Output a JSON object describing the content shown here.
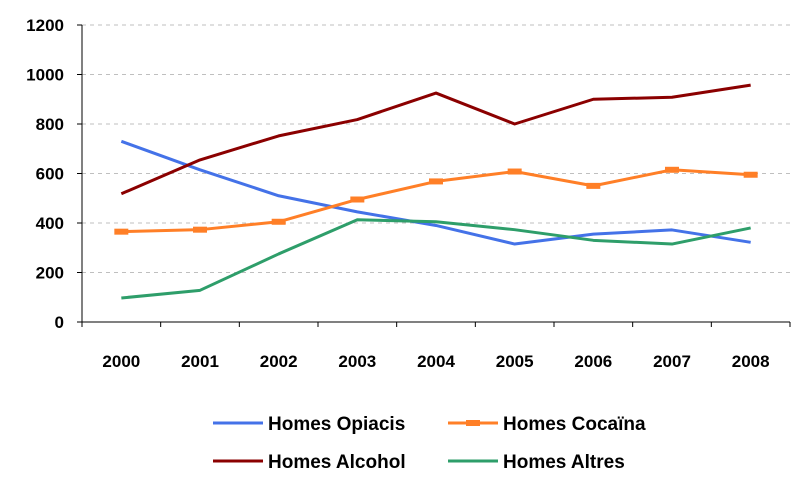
{
  "chart_data": {
    "type": "line",
    "categories": [
      "2000",
      "2001",
      "2002",
      "2003",
      "2004",
      "2005",
      "2006",
      "2007",
      "2008"
    ],
    "ylim": [
      0,
      1200
    ],
    "yticks": [
      0,
      200,
      400,
      600,
      800,
      1000,
      1200
    ],
    "grid": true,
    "legend_position": "bottom",
    "series": [
      {
        "name": "Homes Opiacis",
        "color": "#4472e8",
        "marker": "none",
        "values": [
          730,
          615,
          510,
          445,
          390,
          315,
          355,
          372,
          322
        ]
      },
      {
        "name": "Homes Cocaïna",
        "color": "#ff7f27",
        "marker": "dash",
        "values": [
          365,
          373,
          405,
          495,
          568,
          608,
          550,
          615,
          595
        ]
      },
      {
        "name": "Homes Alcohol",
        "color": "#8b0000",
        "marker": "none",
        "values": [
          518,
          655,
          752,
          818,
          925,
          800,
          900,
          908,
          957
        ]
      },
      {
        "name": "Homes Altres",
        "color": "#2e9e6a",
        "marker": "none",
        "values": [
          97,
          128,
          275,
          413,
          405,
          373,
          330,
          315,
          380
        ]
      }
    ]
  }
}
